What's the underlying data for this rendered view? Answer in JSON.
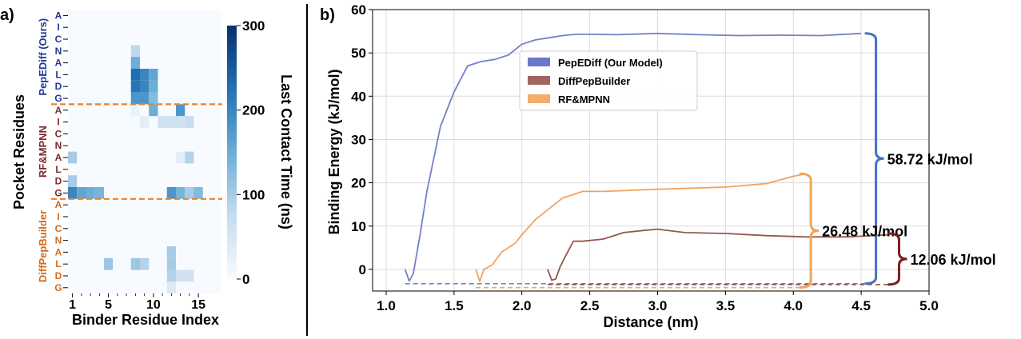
{
  "chart_data": [
    {
      "type": "heatmap",
      "panel_label": "a)",
      "xlabel": "Binder Residue Index",
      "ylabel": "Pocket Residues",
      "x_ticks": [
        "1",
        "5",
        "10",
        "15"
      ],
      "residues": [
        "A",
        "I",
        "C",
        "N",
        "A",
        "L",
        "D",
        "G"
      ],
      "groups": [
        {
          "name": "PepEDiff (Ours)",
          "color": "#1f3a93",
          "cells": [
            [
              3,
              8,
              80
            ],
            [
              4,
              8,
              150
            ],
            [
              5,
              8,
              230
            ],
            [
              5,
              9,
              200
            ],
            [
              5,
              10,
              160
            ],
            [
              6,
              8,
              220
            ],
            [
              6,
              9,
              200
            ],
            [
              6,
              10,
              150
            ],
            [
              7,
              8,
              180
            ],
            [
              7,
              9,
              180
            ],
            [
              7,
              10,
              130
            ],
            [
              8,
              8,
              20
            ],
            [
              8,
              10,
              150
            ],
            [
              8,
              13,
              180
            ]
          ]
        },
        {
          "name": "RF&MPNN",
          "color": "#7a2b2b",
          "cells": [
            [
              1,
              9,
              30
            ],
            [
              1,
              11,
              60
            ],
            [
              1,
              12,
              60
            ],
            [
              1,
              13,
              60
            ],
            [
              1,
              14,
              70
            ],
            [
              4,
              1,
              100
            ],
            [
              4,
              13,
              30
            ],
            [
              4,
              14,
              90
            ],
            [
              6,
              1,
              100
            ],
            [
              7,
              1,
              200
            ],
            [
              7,
              2,
              160
            ],
            [
              7,
              3,
              150
            ],
            [
              7,
              4,
              140
            ],
            [
              7,
              12,
              180
            ],
            [
              7,
              13,
              140
            ],
            [
              7,
              14,
              100
            ],
            [
              7,
              15,
              130
            ]
          ]
        },
        {
          "name": "DiffPepBuilder",
          "color": "#d46a1a",
          "cells": [
            [
              4,
              12,
              100
            ],
            [
              5,
              5,
              110
            ],
            [
              5,
              8,
              110
            ],
            [
              5,
              9,
              90
            ],
            [
              5,
              12,
              100
            ],
            [
              6,
              12,
              90
            ],
            [
              6,
              13,
              60
            ],
            [
              6,
              14,
              60
            ],
            [
              7,
              12,
              40
            ]
          ]
        }
      ],
      "colorbar": {
        "label": "Last Contact Time (ns)",
        "min": 0,
        "max": 300,
        "ticks": [
          0,
          100,
          200,
          300
        ]
      }
    },
    {
      "type": "line",
      "panel_label": "b)",
      "xlabel": "Distance (nm)",
      "ylabel": "Binding Energy  (kJ/mol)",
      "xlim": [
        0.9,
        5.0
      ],
      "ylim": [
        -5,
        60
      ],
      "x_ticks": [
        "1.0",
        "1.5",
        "2.0",
        "2.5",
        "3.0",
        "3.5",
        "4.0",
        "4.5",
        "5.0"
      ],
      "y_ticks": [
        "0",
        "10",
        "20",
        "30",
        "40",
        "50",
        "60"
      ],
      "grid": true,
      "legend": "upper-center",
      "series": [
        {
          "name": "PepEDiff (Our Model)",
          "color": "#7480c8",
          "legend_color": "#6a78c8",
          "baseline": -3.3,
          "x": [
            1.14,
            1.17,
            1.2,
            1.25,
            1.3,
            1.4,
            1.5,
            1.6,
            1.7,
            1.8,
            1.9,
            2.0,
            2.1,
            2.2,
            2.3,
            2.4,
            2.5,
            2.7,
            3.0,
            3.3,
            3.6,
            3.9,
            4.2,
            4.5
          ],
          "y": [
            0,
            -2.7,
            -1,
            8,
            18,
            33,
            41,
            47,
            48,
            48.5,
            49.5,
            52,
            53,
            53.5,
            54,
            54.3,
            54.3,
            54.2,
            54.5,
            54.2,
            54,
            54.1,
            54,
            54.5
          ]
        },
        {
          "name": "DiffPepBuilder",
          "color": "#96564e",
          "legend_color": "#a0655e",
          "baseline": -3.5,
          "x": [
            2.19,
            2.22,
            2.25,
            2.28,
            2.32,
            2.38,
            2.45,
            2.6,
            2.75,
            2.9,
            3.0,
            3.2,
            3.5,
            3.8,
            4.1,
            4.4,
            4.7
          ],
          "y": [
            0,
            -2.5,
            -2.2,
            0.5,
            3,
            6.5,
            6.5,
            7,
            8.5,
            9,
            9.3,
            8.5,
            8.3,
            7.8,
            7.5,
            7.5,
            8
          ]
        },
        {
          "name": "RF&MPNN",
          "color": "#f2a45c",
          "legend_color": "#f2ac6c",
          "baseline": -4.2,
          "x": [
            1.66,
            1.69,
            1.72,
            1.78,
            1.85,
            1.95,
            2.0,
            2.1,
            2.2,
            2.3,
            2.45,
            2.6,
            3.0,
            3.5,
            3.8,
            4.0,
            4.08
          ],
          "y": [
            0,
            -2.8,
            0,
            1,
            4,
            6,
            8,
            11.5,
            14,
            16.5,
            18,
            18,
            18.5,
            19,
            19.8,
            21.5,
            22
          ]
        }
      ],
      "annotations": [
        {
          "text": "58.72 kJ/mol",
          "value": 58.72,
          "color": "#4472c4",
          "y_top": 54.5,
          "y_bottom": -3.3,
          "x": 4.55
        },
        {
          "text": "26.48 kJ/mol",
          "value": 26.48,
          "color": "#f2a45c",
          "y_top": 22.1,
          "y_bottom": -4.2,
          "x": 4.07
        },
        {
          "text": "12.06 kJ/mol",
          "value": 12.06,
          "color": "#7a1e1e",
          "y_top": 8.3,
          "y_bottom": -3.5,
          "x": 4.72
        }
      ]
    }
  ]
}
